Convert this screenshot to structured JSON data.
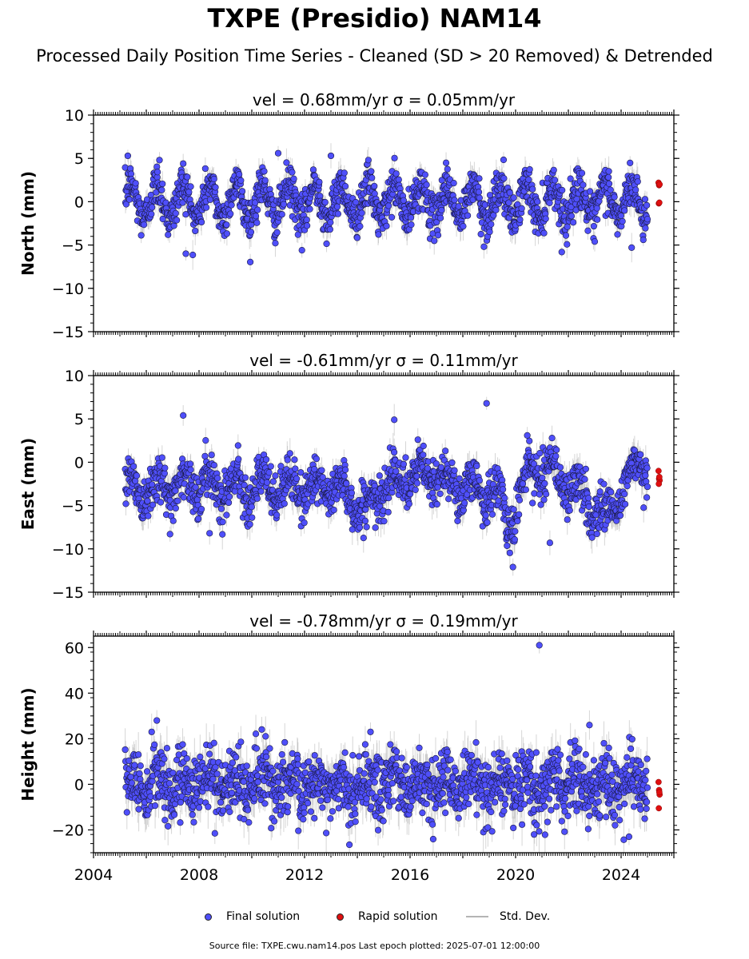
{
  "header": {
    "title": "TXPE (Presidio) NAM14",
    "subtitle": "Processed Daily Position Time Series - Cleaned (SD > 20 Removed) & Detrended"
  },
  "legend": {
    "final_label": "Final solution",
    "rapid_label": "Rapid solution",
    "std_label": "Std. Dev."
  },
  "footer": {
    "text": "Source file: TXPE.cwu.nam14.pos  Last epoch plotted: 2025-07-01 12:00:00"
  },
  "colors": {
    "final": "#4f4ffa",
    "final_edge": "#1a1a44",
    "rapid": "#e01010",
    "std": "#b4b4b4"
  },
  "chart_data": [
    {
      "type": "scatter",
      "title": "vel = 0.68mm/yr   σ = 0.05mm/yr",
      "ylabel": "North (mm)",
      "xlabel": "",
      "xlim": [
        2004.0,
        2026.0
      ],
      "ylim": [
        -15,
        10
      ],
      "yticks": [
        -15,
        -10,
        -5,
        0,
        5,
        10
      ],
      "ytick_labels": [
        "−15",
        "−10",
        "−5",
        "0",
        "5",
        "10"
      ],
      "xticks": [
        2004,
        2008,
        2012,
        2016,
        2020,
        2024
      ],
      "xtick_labels": [],
      "grid": false,
      "series": [
        {
          "name": "Final solution",
          "x_range": [
            2005.2,
            2025.0
          ],
          "seasonal_amplitude": 2.0,
          "noise_sd": 1.2,
          "outliers": [
            {
              "x": 2005.3,
              "y": 5.3
            },
            {
              "x": 2006.5,
              "y": 4.8
            },
            {
              "x": 2007.4,
              "y": 4.4
            },
            {
              "x": 2007.5,
              "y": -6.0
            },
            {
              "x": 2011.0,
              "y": 5.6
            },
            {
              "x": 2011.9,
              "y": -5.6
            },
            {
              "x": 2013.0,
              "y": 5.3
            },
            {
              "x": 2018.8,
              "y": -5.2
            },
            {
              "x": 2023.0,
              "y": -4.6
            },
            {
              "x": 2024.4,
              "y": -5.3
            }
          ]
        },
        {
          "name": "Rapid solution",
          "x": [
            2025.42,
            2025.44,
            2025.46,
            2025.43,
            2025.45
          ],
          "y": [
            2.2,
            1.9,
            2.0,
            -0.2,
            -0.1
          ]
        }
      ]
    },
    {
      "type": "scatter",
      "title": "vel = -0.61mm/yr   σ = 0.11mm/yr",
      "ylabel": "East (mm)",
      "xlabel": "",
      "xlim": [
        2004.0,
        2026.0
      ],
      "ylim": [
        -15,
        10
      ],
      "yticks": [
        -15,
        -10,
        -5,
        0,
        5,
        10
      ],
      "ytick_labels": [
        "−15",
        "−10",
        "−5",
        "0",
        "5",
        "10"
      ],
      "xticks": [
        2004,
        2008,
        2012,
        2016,
        2020,
        2024
      ],
      "xtick_labels": [],
      "grid": false,
      "series": [
        {
          "name": "Final solution",
          "x_range": [
            2005.2,
            2025.0
          ],
          "seasonal_amplitude": 1.5,
          "noise_sd": 1.3,
          "trend_points": [
            [
              2005.2,
              -3.0
            ],
            [
              2008,
              -2.5
            ],
            [
              2011,
              -3.0
            ],
            [
              2013.5,
              -3.0
            ],
            [
              2014.3,
              -6.0
            ],
            [
              2015.2,
              -2.0
            ],
            [
              2017,
              -1.5
            ],
            [
              2018,
              -3.0
            ],
            [
              2019.3,
              -3.5
            ],
            [
              2019.7,
              -7.5
            ],
            [
              2020.5,
              -1.0
            ],
            [
              2021.2,
              -0.5
            ],
            [
              2022.5,
              -4.0
            ],
            [
              2023.5,
              -6.5
            ],
            [
              2024.2,
              -2.0
            ],
            [
              2025.0,
              0.0
            ]
          ],
          "outliers": [
            {
              "x": 2007.4,
              "y": 5.4
            },
            {
              "x": 2015.4,
              "y": 4.9
            },
            {
              "x": 2018.9,
              "y": 6.8
            },
            {
              "x": 2019.9,
              "y": -12.1
            },
            {
              "x": 2021.3,
              "y": -9.3
            },
            {
              "x": 2006.9,
              "y": -8.3
            },
            {
              "x": 2008.4,
              "y": -8.2
            }
          ]
        },
        {
          "name": "Rapid solution",
          "x": [
            2025.42,
            2025.44,
            2025.46,
            2025.43,
            2025.45
          ],
          "y": [
            -1.0,
            -1.9,
            -2.1,
            -2.5,
            -1.7
          ]
        }
      ]
    },
    {
      "type": "scatter",
      "title": "vel = -0.78mm/yr   σ = 0.19mm/yr",
      "ylabel": "Height (mm)",
      "xlabel": "",
      "xlim": [
        2004.0,
        2026.0
      ],
      "ylim": [
        -30,
        65
      ],
      "yticks": [
        -20,
        0,
        20,
        40,
        60
      ],
      "ytick_labels": [
        "−20",
        "0",
        "20",
        "40",
        "60"
      ],
      "xticks": [
        2004,
        2008,
        2012,
        2016,
        2020,
        2024
      ],
      "xtick_labels": [
        "2004",
        "2008",
        "2012",
        "2016",
        "2020",
        "2024"
      ],
      "grid": false,
      "series": [
        {
          "name": "Final solution",
          "x_range": [
            2005.2,
            2025.0
          ],
          "seasonal_amplitude": 4.0,
          "noise_sd": 7.0,
          "outliers": [
            {
              "x": 2006.4,
              "y": 28.0
            },
            {
              "x": 2013.7,
              "y": -26.5
            },
            {
              "x": 2014.5,
              "y": 23.0
            },
            {
              "x": 2020.9,
              "y": 61.0
            },
            {
              "x": 2022.8,
              "y": 26.0
            },
            {
              "x": 2020.7,
              "y": -22.0
            },
            {
              "x": 2008.6,
              "y": -21.5
            },
            {
              "x": 2024.3,
              "y": -23.0
            }
          ]
        },
        {
          "name": "Rapid solution",
          "x": [
            2025.42,
            2025.44,
            2025.46,
            2025.43,
            2025.45
          ],
          "y": [
            1.0,
            -2.5,
            -4.5,
            -10.5,
            -3.5
          ]
        }
      ]
    }
  ]
}
